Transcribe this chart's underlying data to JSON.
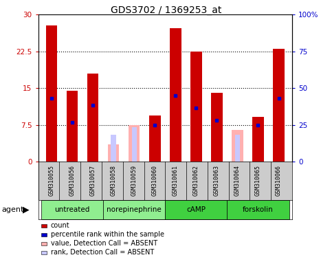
{
  "title": "GDS3702 / 1369253_at",
  "samples": [
    "GSM310055",
    "GSM310056",
    "GSM310057",
    "GSM310058",
    "GSM310059",
    "GSM310060",
    "GSM310061",
    "GSM310062",
    "GSM310063",
    "GSM310064",
    "GSM310065",
    "GSM310066"
  ],
  "count_values": [
    27.8,
    14.5,
    18.0,
    null,
    null,
    9.5,
    27.2,
    22.5,
    14.0,
    null,
    9.2,
    23.0
  ],
  "absent_value_values": [
    null,
    null,
    null,
    3.5,
    7.5,
    null,
    null,
    null,
    null,
    6.5,
    null,
    null
  ],
  "percentile_rank": [
    13.0,
    8.0,
    11.5,
    null,
    null,
    7.5,
    13.5,
    11.0,
    8.5,
    null,
    7.5,
    13.0
  ],
  "absent_rank_values": [
    null,
    null,
    null,
    5.5,
    7.0,
    null,
    null,
    null,
    null,
    5.5,
    null,
    null
  ],
  "groups": [
    {
      "label": "untreated",
      "indices": [
        0,
        1,
        2
      ],
      "color": "#90ee90"
    },
    {
      "label": "norepinephrine",
      "indices": [
        3,
        4,
        5
      ],
      "color": "#90ee90"
    },
    {
      "label": "cAMP",
      "indices": [
        6,
        7,
        8
      ],
      "color": "#40d040"
    },
    {
      "label": "forskolin",
      "indices": [
        9,
        10,
        11
      ],
      "color": "#40d040"
    }
  ],
  "ylim_left": [
    0,
    30
  ],
  "ylim_right": [
    0,
    100
  ],
  "yticks_left": [
    0,
    7.5,
    15,
    22.5,
    30
  ],
  "ytick_labels_left": [
    "0",
    "7.5",
    "15",
    "22.5",
    "30"
  ],
  "yticks_right": [
    0,
    25,
    50,
    75,
    100
  ],
  "ytick_labels_right": [
    "0",
    "25",
    "50",
    "75",
    "100%"
  ],
  "bar_width": 0.55,
  "count_color": "#cc0000",
  "percentile_color": "#0000cc",
  "absent_value_color": "#ffb0b0",
  "absent_rank_color": "#c8c8ff",
  "background_color": "#cccccc",
  "plot_bg_color": "#ffffff",
  "legend_items": [
    {
      "color": "#cc0000",
      "label": "count"
    },
    {
      "color": "#0000cc",
      "label": "percentile rank within the sample"
    },
    {
      "color": "#ffb0b0",
      "label": "value, Detection Call = ABSENT"
    },
    {
      "color": "#c8c8ff",
      "label": "rank, Detection Call = ABSENT"
    }
  ]
}
